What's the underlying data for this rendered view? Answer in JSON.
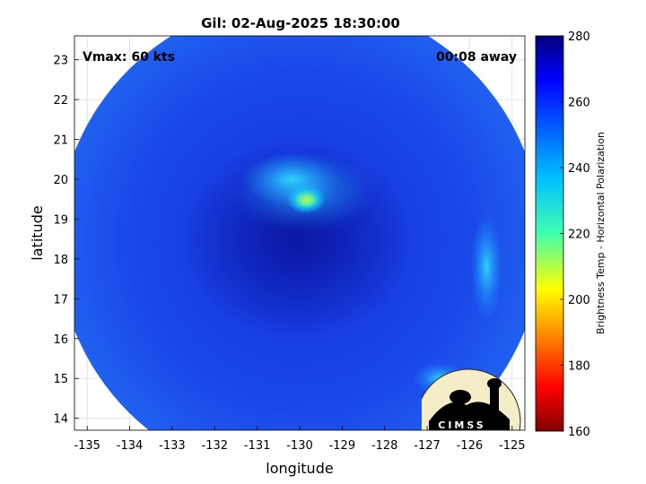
{
  "chart_data": {
    "type": "heatmap",
    "title": "Gil: 02-Aug-2025 18:30:00",
    "annotations": {
      "vmax": "Vmax: 60 kts",
      "time_offset": "00:08 away"
    },
    "xlabel": "longitude",
    "ylabel": "latitude",
    "xlim": [
      -135.3,
      -124.7
    ],
    "ylim": [
      13.7,
      23.6
    ],
    "xticks": [
      -135,
      -134,
      -133,
      -132,
      -131,
      -130,
      -129,
      -128,
      -127,
      -126,
      -125
    ],
    "yticks": [
      14,
      15,
      16,
      17,
      18,
      19,
      20,
      21,
      22,
      23
    ],
    "grid": true,
    "colorbar": {
      "label": "Brightness Temp - Horizontal Polarization",
      "clim": [
        160,
        280
      ],
      "ticks": [
        160,
        180,
        200,
        220,
        240,
        260,
        280
      ],
      "colormap": "jet"
    },
    "swath": {
      "center_lon": -130.0,
      "center_lat": 18.45,
      "radius_deg": 5.7
    },
    "storm_center": {
      "lon": -130.0,
      "lat": 18.9
    },
    "features": [
      {
        "name": "eyewall-warm-spot",
        "lon": -129.85,
        "lat": 19.5,
        "tb": 210
      },
      {
        "name": "inner-band",
        "lon": -130.2,
        "lat": 20.0,
        "tb": 235
      },
      {
        "name": "outer-band-southeast",
        "lon": -126.7,
        "lat": 15.0,
        "tb": 238
      },
      {
        "name": "eastern-band",
        "lon": -125.6,
        "lat": 17.8,
        "tb": 245
      }
    ],
    "logo": "CIMSS"
  }
}
